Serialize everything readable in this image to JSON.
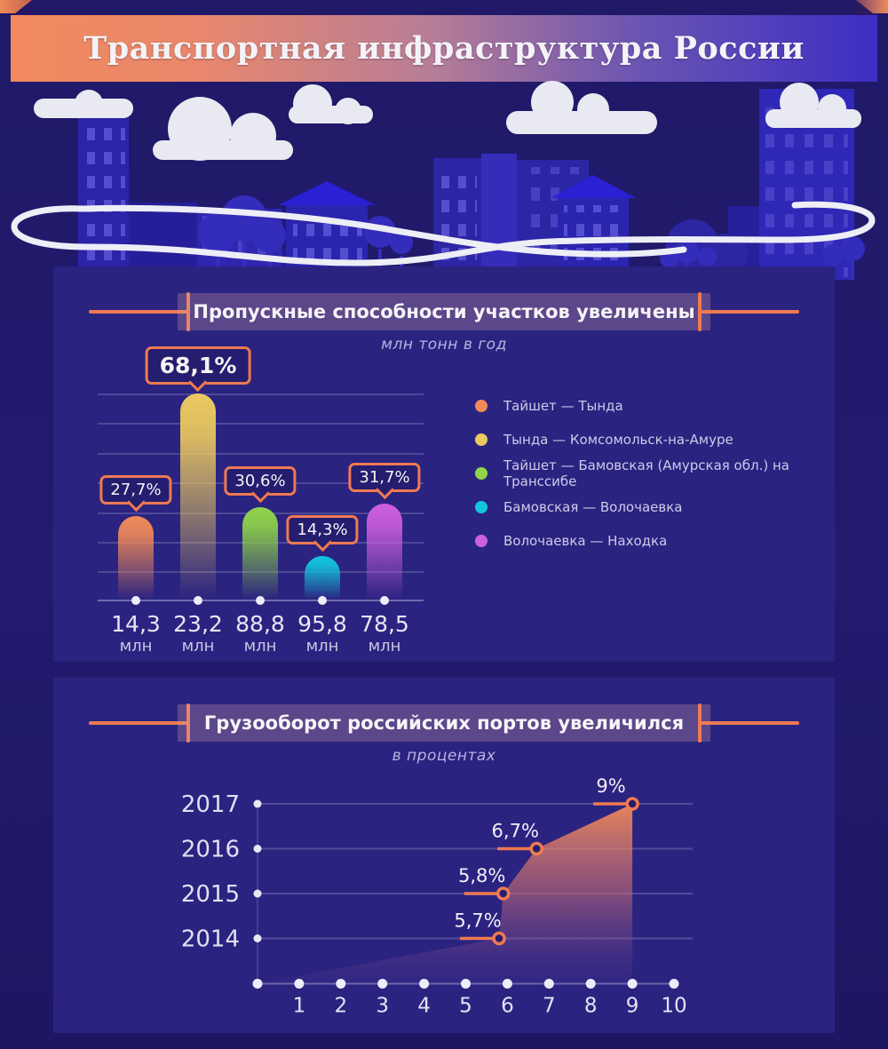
{
  "header": {
    "title": "Транспортная инфраструктура России"
  },
  "palette": {
    "accent_orange": "#ef7a52",
    "panel_bg": "#2b2380",
    "page_bg": "#201968",
    "callout_bg": "#251d6f",
    "text_light": "#e6e6f3"
  },
  "chart_data": [
    {
      "type": "bar",
      "title": "Пропускные способности участков увеличены",
      "subtitle": "млн тонн в год",
      "unit": "млн",
      "categories": [
        "Тайшет — Тында",
        "Тында — Комсомольск-на-Амуре",
        "Тайшет — Бамовская (Амурская обл.) на Транссибе",
        "Бамовская — Волочаевка",
        "Волочаевка — Находка"
      ],
      "percent_increase": [
        27.7,
        68.1,
        30.6,
        14.3,
        31.7
      ],
      "percent_labels": [
        "27,7%",
        "68,1%",
        "30,6%",
        "14,3%",
        "31,7%"
      ],
      "volume_labels": [
        "14,3",
        "23,2",
        "88,8",
        "95,8",
        "78,5"
      ],
      "colors": [
        "#f08a58",
        "#ebc95f",
        "#90d44a",
        "#12c6dc",
        "#cd5fe0"
      ],
      "legend_position": "right",
      "grid": true
    },
    {
      "type": "area",
      "title": "Грузооборот российских портов увеличился",
      "subtitle": "в процентах",
      "y_categories": [
        "2017",
        "2016",
        "2015",
        "2014"
      ],
      "x_ticks": [
        "1",
        "2",
        "3",
        "4",
        "5",
        "6",
        "7",
        "8",
        "9",
        "10"
      ],
      "x_range": [
        0,
        10
      ],
      "points": [
        {
          "year": "2014",
          "x": 5.8,
          "value": 5.7,
          "label": "5,7%"
        },
        {
          "year": "2015",
          "x": 5.9,
          "value": 5.8,
          "label": "5,8%"
        },
        {
          "year": "2016",
          "x": 6.7,
          "value": 6.7,
          "label": "6,7%"
        },
        {
          "year": "2017",
          "x": 9.0,
          "value": 9.0,
          "label": "9%"
        }
      ],
      "grid": true
    }
  ]
}
